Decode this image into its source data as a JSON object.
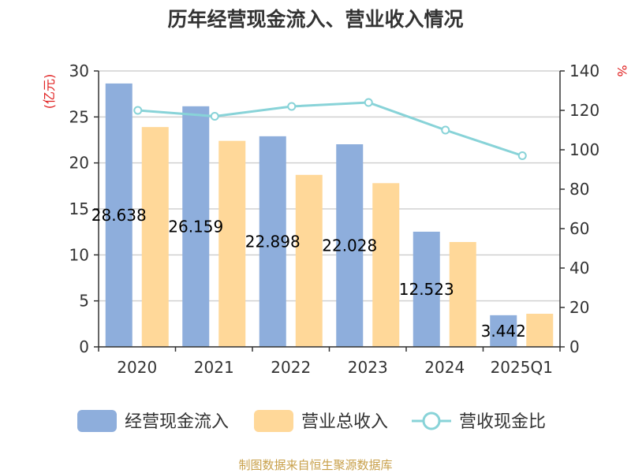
{
  "chart_data": {
    "type": "bar",
    "title": "历年经营现金流入、营业收入情况",
    "categories": [
      "2020",
      "2021",
      "2022",
      "2023",
      "2024",
      "2025Q1"
    ],
    "series": [
      {
        "name": "经营现金流入",
        "kind": "bar",
        "axis": "left",
        "color": "#8eaedc",
        "values": [
          28.638,
          26.159,
          22.898,
          22.028,
          12.523,
          3.442
        ]
      },
      {
        "name": "营业总收入",
        "kind": "bar",
        "axis": "left",
        "color": "#ffd899",
        "values": [
          23.9,
          22.4,
          18.7,
          17.8,
          11.4,
          3.6
        ]
      },
      {
        "name": "营收现金比",
        "kind": "line",
        "axis": "right",
        "color": "#88d3d8",
        "values": [
          120,
          117,
          122,
          124,
          110,
          97
        ]
      }
    ],
    "data_labels": [
      "28.638",
      "26.159",
      "22.898",
      "22.028",
      "12.523",
      "3.442"
    ],
    "y_left": {
      "unit": "(亿元)",
      "ylim": [
        0,
        30
      ],
      "ticks": [
        "0",
        "5",
        "10",
        "15",
        "20",
        "25",
        "30"
      ]
    },
    "y_right": {
      "unit": "%",
      "ylim": [
        0,
        140
      ],
      "ticks": [
        "0",
        "20",
        "40",
        "60",
        "80",
        "100",
        "120",
        "140"
      ]
    },
    "grid": true,
    "legend": {
      "position": "bottom"
    }
  },
  "footer": {
    "source": "制图数据来自恒生聚源数据库"
  }
}
